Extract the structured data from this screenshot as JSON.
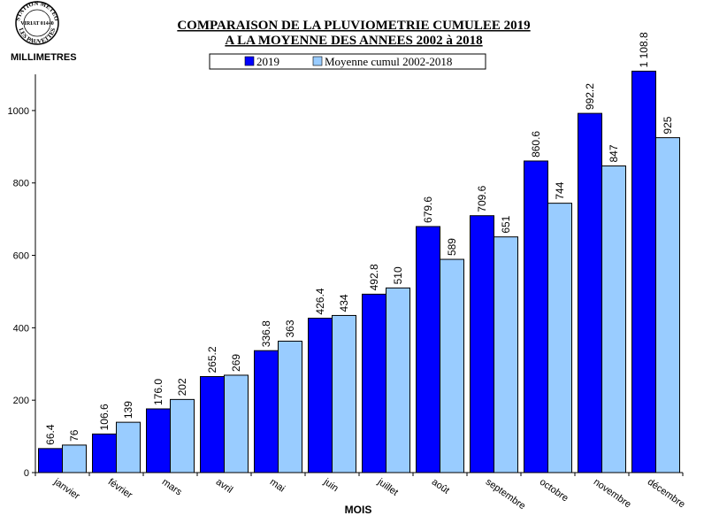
{
  "stamp": {
    "top_text": "STATION METEO",
    "middle_text": "VIRIAT 01440",
    "bottom_text": "LES PAUVETTES"
  },
  "chart_data": {
    "type": "bar",
    "title": "COMPARAISON DE LA PLUVIOMETRIE CUMULEE 2019",
    "subtitle": "A LA MOYENNE DES ANNEES 2002 à 2018",
    "ylabel": "MILLIMETRES",
    "xlabel": "MOIS",
    "ylim": [
      0,
      1100
    ],
    "yticks": [
      0,
      200,
      400,
      600,
      800,
      1000
    ],
    "grid": false,
    "legend_position": "top-center",
    "categories": [
      "janvier",
      "février",
      "mars",
      "avril",
      "mai",
      "juin",
      "juillet",
      "août",
      "septembre",
      "octobre",
      "novembre",
      "décembre"
    ],
    "series": [
      {
        "name": "2019",
        "color": "#0000FF",
        "values": [
          66.4,
          106.6,
          176.0,
          265.2,
          336.8,
          426.4,
          492.8,
          679.6,
          709.6,
          860.6,
          992.2,
          1108.8
        ],
        "labels": [
          "66.4",
          "106.6",
          "176.0",
          "265.2",
          "336.8",
          "426.4",
          "492.8",
          "679.6",
          "709.6",
          "860.6",
          "992.2",
          "1 108.8"
        ]
      },
      {
        "name": "Moyenne cumul 2002-2018",
        "color": "#99CCFF",
        "values": [
          76,
          139,
          202,
          269,
          363,
          434,
          510,
          589,
          651,
          744,
          847,
          925
        ],
        "labels": [
          "76",
          "139",
          "202",
          "269",
          "363",
          "434",
          "510",
          "589",
          "651",
          "744",
          "847",
          "925"
        ]
      }
    ]
  }
}
